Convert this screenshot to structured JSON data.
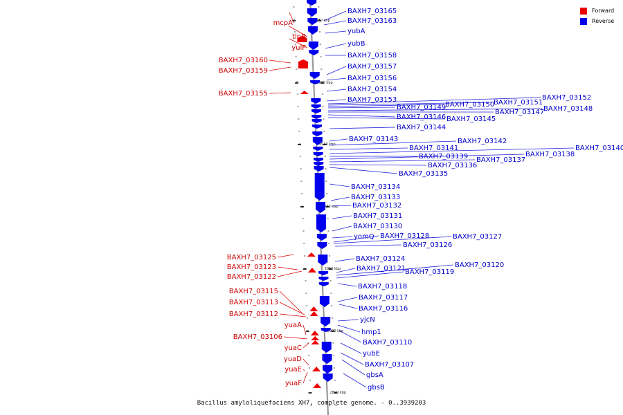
{
  "legend": [
    {
      "label": "Forward",
      "color": "#ee0000"
    },
    {
      "label": "Reverse",
      "color": "#0000ee"
    }
  ],
  "caption": "Bacillus amyloliquefaciens XH7, complete genome. - 0..3939203",
  "colors": {
    "forward": "#ee0000",
    "reverse": "#0000ee",
    "backbone": "#999999"
  },
  "ticks": [
    {
      "label": "2950 kbp",
      "y": 28
    },
    {
      "label": "2940 kbp",
      "y": 118
    },
    {
      "label": "2930 kbp",
      "y": 207
    },
    {
      "label": "2920 kbp",
      "y": 297
    },
    {
      "label": "2910 kbp",
      "y": 387
    },
    {
      "label": "2900 kbp",
      "y": 477
    },
    {
      "label": "2890 kbp",
      "y": 566
    }
  ],
  "forward_genes": [
    {
      "label": "mcpA"
    },
    {
      "label": "tlpB"
    },
    {
      "label": "yulF"
    },
    {
      "label": "BAXH7_03160"
    },
    {
      "label": "BAXH7_03159"
    },
    {
      "label": "BAXH7_03155"
    },
    {
      "label": "BAXH7_03125"
    },
    {
      "label": "BAXH7_03123"
    },
    {
      "label": "BAXH7_03122"
    },
    {
      "label": "BAXH7_03115"
    },
    {
      "label": "BAXH7_03113"
    },
    {
      "label": "BAXH7_03112"
    },
    {
      "label": "yuaA"
    },
    {
      "label": "BAXH7_03106"
    },
    {
      "label": "yuaC"
    },
    {
      "label": "yuaD"
    },
    {
      "label": "yuaE"
    },
    {
      "label": "yuaF"
    }
  ],
  "reverse_genes": [
    {
      "label": "BAXH7_03165"
    },
    {
      "label": "BAXH7_03163"
    },
    {
      "label": "yubA"
    },
    {
      "label": "yubB"
    },
    {
      "label": "BAXH7_03158"
    },
    {
      "label": "BAXH7_03157"
    },
    {
      "label": "BAXH7_03156"
    },
    {
      "label": "BAXH7_03154"
    },
    {
      "label": "BAXH7_03153"
    },
    {
      "label": "BAXH7_03152"
    },
    {
      "label": "BAXH7_03151"
    },
    {
      "label": "BAXH7_03150"
    },
    {
      "label": "BAXH7_03149"
    },
    {
      "label": "BAXH7_03148"
    },
    {
      "label": "BAXH7_03147"
    },
    {
      "label": "BAXH7_03146"
    },
    {
      "label": "BAXH7_03145"
    },
    {
      "label": "BAXH7_03144"
    },
    {
      "label": "BAXH7_03143"
    },
    {
      "label": "BAXH7_03142"
    },
    {
      "label": "BAXH7_03141"
    },
    {
      "label": "BAXH7_03140"
    },
    {
      "label": "BAXH7_03139"
    },
    {
      "label": "BAXH7_03138"
    },
    {
      "label": "BAXH7_03137"
    },
    {
      "label": "BAXH7_03136"
    },
    {
      "label": "BAXH7_03135"
    },
    {
      "label": "BAXH7_03134"
    },
    {
      "label": "BAXH7_03133"
    },
    {
      "label": "BAXH7_03132"
    },
    {
      "label": "BAXH7_03131"
    },
    {
      "label": "BAXH7_03130"
    },
    {
      "label": "yomQ"
    },
    {
      "label": "BAXH7_03128"
    },
    {
      "label": "BAXH7_03127"
    },
    {
      "label": "BAXH7_03126"
    },
    {
      "label": "BAXH7_03124"
    },
    {
      "label": "BAXH7_03121"
    },
    {
      "label": "BAXH7_03120"
    },
    {
      "label": "BAXH7_03119"
    },
    {
      "label": "BAXH7_03118"
    },
    {
      "label": "BAXH7_03117"
    },
    {
      "label": "BAXH7_03116"
    },
    {
      "label": "yjcN"
    },
    {
      "label": "hmp1"
    },
    {
      "label": "BAXH7_03110"
    },
    {
      "label": "yubE"
    },
    {
      "label": "BAXH7_03107"
    },
    {
      "label": "gbsA"
    },
    {
      "label": "gbsB"
    }
  ]
}
